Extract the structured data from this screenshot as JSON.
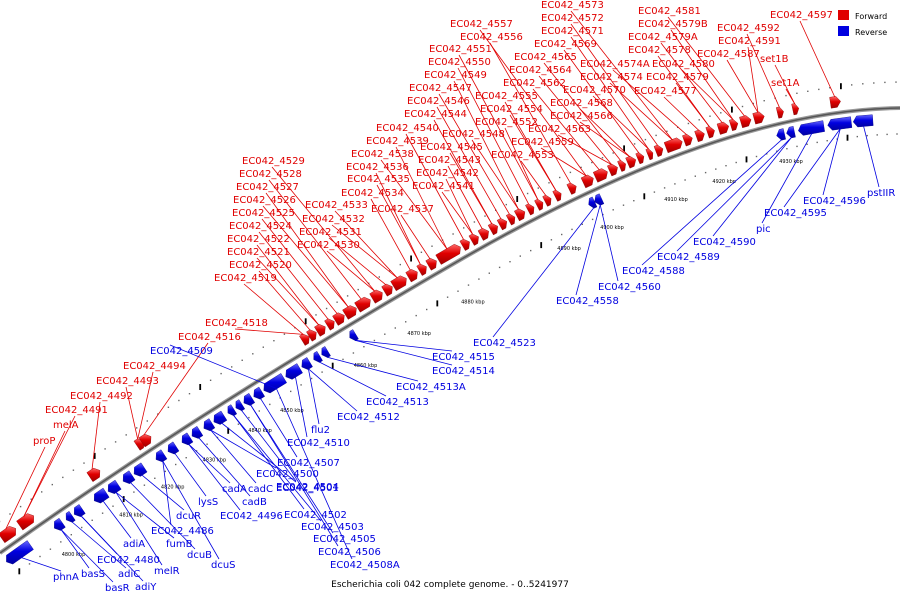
{
  "caption": "Escherichia coli 042 complete genome. - 0..5241977",
  "legend": [
    {
      "label": "Forward",
      "color": "#e00000"
    },
    {
      "label": "Reverse",
      "color": "#0000e0"
    }
  ],
  "colors": {
    "forward": "#e00000",
    "reverse": "#0000e0",
    "backbone": "#777777"
  },
  "ticks": [
    "4800 kbp",
    "4810 kbp",
    "4820 kbp",
    "4830 kbp",
    "4840 kbp",
    "4850 kbp",
    "4860 kbp",
    "4870 kbp",
    "4880 kbp",
    "4890 kbp",
    "4900 kbp",
    "4910 kbp",
    "4920 kbp",
    "4930 kbp"
  ],
  "forward_labels": [
    "proP",
    "melA",
    "EC042_4491",
    "EC042_4492",
    "EC042_4493",
    "EC042_4494",
    "EC042_4516",
    "EC042_4518",
    "EC042_4519",
    "EC042_4520",
    "EC042_4521",
    "EC042_4522",
    "EC042_4524",
    "EC042_4525",
    "EC042_4526",
    "EC042_4527",
    "EC042_4528",
    "EC042_4529",
    "EC042_4530",
    "EC042_4531",
    "EC042_4532",
    "EC042_4533",
    "EC042_4534",
    "EC042_4535",
    "EC042_4536",
    "EC042_4537",
    "EC042_4538",
    "EC042_4539",
    "EC042_4540",
    "EC042_4541",
    "EC042_4542",
    "EC042_4543",
    "EC042_4544",
    "EC042_4545",
    "EC042_4546",
    "EC042_4547",
    "EC042_4548",
    "EC042_4549",
    "EC042_4550",
    "EC042_4551",
    "EC042_4552",
    "EC042_4553",
    "EC042_4554",
    "EC042_4555",
    "EC042_4556",
    "EC042_4557",
    "EC042_4559",
    "EC042_4562",
    "EC042_4563",
    "EC042_4564",
    "EC042_4565",
    "EC042_4566",
    "EC042_4568",
    "EC042_4569",
    "EC042_4570",
    "EC042_4571",
    "EC042_4572",
    "EC042_4573",
    "EC042_4574",
    "EC042_4574A",
    "EC042_4577",
    "EC042_4578",
    "EC042_4579",
    "EC042_4579A",
    "EC042_4579B",
    "EC042_4580",
    "EC042_4581",
    "EC042_4587",
    "EC042_4591",
    "EC042_4592",
    "set1A",
    "set1B",
    "EC042_4597"
  ],
  "reverse_labels": [
    "phnA",
    "basS",
    "basR",
    "adiC",
    "adiY",
    "EC042_4480",
    "adiA",
    "melR",
    "fumB",
    "dcuB",
    "dcuR",
    "EC042_4486",
    "dcuS",
    "lysS",
    "EC042_4496",
    "cadA",
    "cadB",
    "cadC",
    "EC042_4500",
    "EC042_4501",
    "EC042_4502",
    "EC042_4503",
    "EC042_4504",
    "EC042_4505",
    "EC042_4506",
    "EC042_4507",
    "EC042_4508A",
    "EC042_4509",
    "EC042_4510",
    "flu2",
    "EC042_4512",
    "EC042_4513",
    "EC042_4513A",
    "EC042_4514",
    "EC042_4515",
    "EC042_4523",
    "EC042_4558",
    "EC042_4560",
    "EC042_4588",
    "EC042_4589",
    "EC042_4590",
    "pic",
    "EC042_4595",
    "EC042_4596",
    "pstIIR"
  ]
}
